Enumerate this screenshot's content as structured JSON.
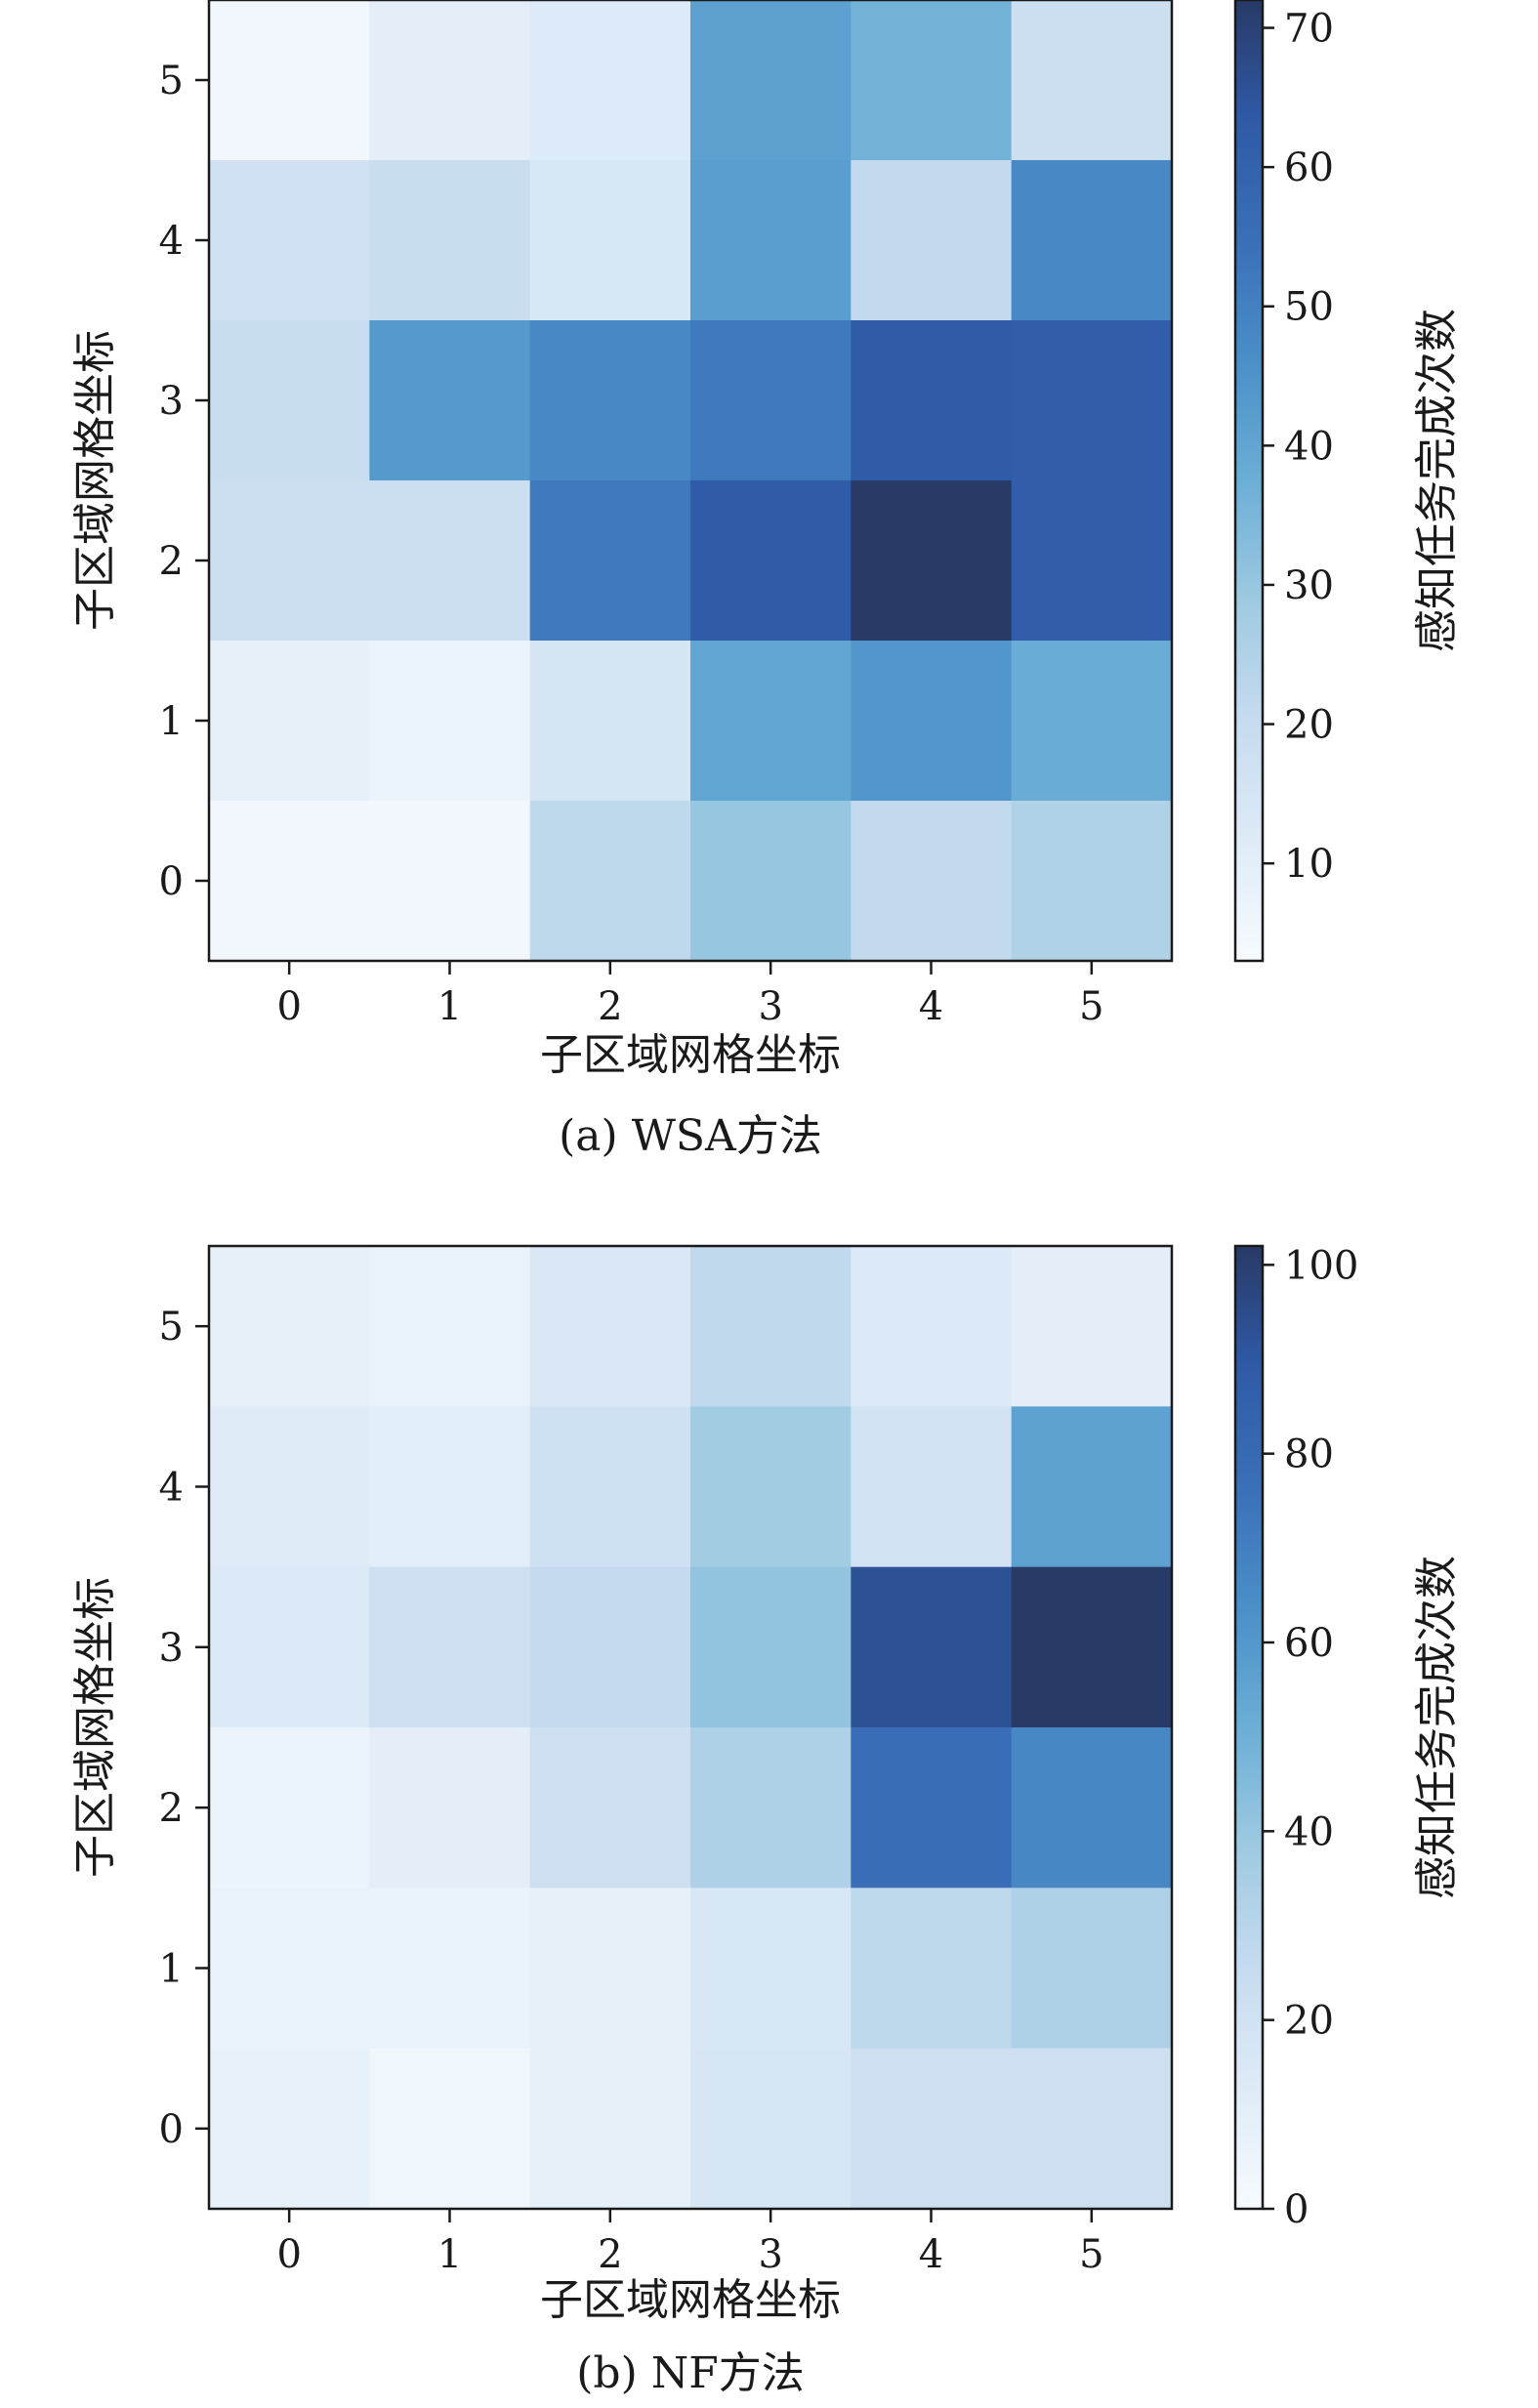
{
  "chart_data": [
    {
      "type": "heatmap",
      "caption": "(a)  WSA方法",
      "xlabel": "子区域网格坐标",
      "ylabel": "子区域网格坐标",
      "colorbar_label": "感知任务完成次数",
      "x_ticks": [
        "0",
        "1",
        "2",
        "3",
        "4",
        "5"
      ],
      "y_ticks": [
        "0",
        "1",
        "2",
        "3",
        "4",
        "5"
      ],
      "colorbar_range": [
        3,
        72
      ],
      "colorbar_ticks": [
        10,
        20,
        30,
        40,
        50,
        60,
        70
      ],
      "colormap": "Blues",
      "rows_top_to_bottom_y": [
        5,
        4,
        3,
        2,
        1,
        0
      ],
      "values": [
        [
          5,
          10,
          12,
          41,
          36,
          18
        ],
        [
          17,
          19,
          14,
          42,
          21,
          48
        ],
        [
          19,
          43,
          48,
          52,
          63,
          62
        ],
        [
          18,
          18,
          52,
          63,
          72,
          62
        ],
        [
          9,
          7,
          15,
          40,
          44,
          38
        ],
        [
          5,
          5,
          22,
          30,
          21,
          25
        ]
      ]
    },
    {
      "type": "heatmap",
      "caption": "(b)  NF方法",
      "xlabel": "子区域网格坐标",
      "ylabel": "子区域网格坐标",
      "colorbar_label": "感知任务完成次数",
      "x_ticks": [
        "0",
        "1",
        "2",
        "3",
        "4",
        "5"
      ],
      "y_ticks": [
        "0",
        "1",
        "2",
        "3",
        "4",
        "5"
      ],
      "colorbar_range": [
        0,
        102
      ],
      "colorbar_ticks": [
        0,
        20,
        40,
        60,
        80,
        100
      ],
      "colormap": "Blues",
      "rows_top_to_bottom_y": [
        5,
        4,
        3,
        2,
        1,
        0
      ],
      "values": [
        [
          9,
          7,
          15,
          27,
          14,
          10
        ],
        [
          12,
          11,
          21,
          37,
          19,
          56
        ],
        [
          14,
          22,
          26,
          41,
          93,
          102
        ],
        [
          6,
          10,
          22,
          33,
          78,
          67
        ],
        [
          7,
          7,
          9,
          16,
          28,
          33
        ],
        [
          8,
          4,
          9,
          17,
          22,
          22
        ]
      ]
    }
  ]
}
